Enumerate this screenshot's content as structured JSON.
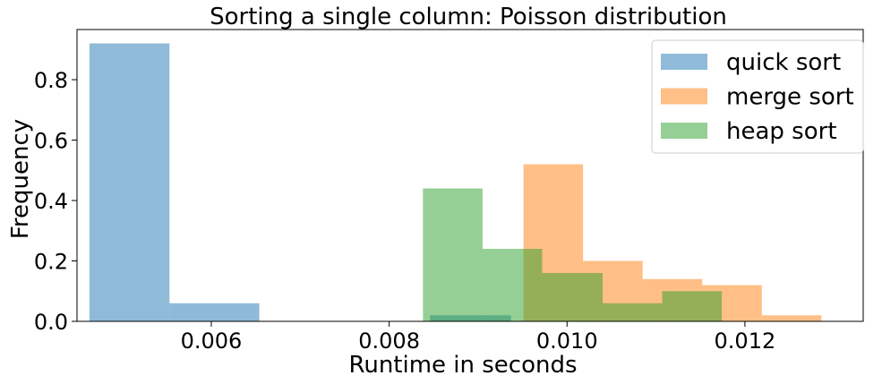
{
  "chart_data": {
    "type": "bar",
    "title": "Sorting a single column: Poisson distribution",
    "xlabel": "Runtime in seconds",
    "ylabel": "Frequency",
    "xlim": [
      0.00449,
      0.01333
    ],
    "ylim": [
      0,
      0.966
    ],
    "xticks": [
      {
        "value": 0.006,
        "label": "0.006"
      },
      {
        "value": 0.008,
        "label": "0.008"
      },
      {
        "value": 0.01,
        "label": "0.010"
      },
      {
        "value": 0.012,
        "label": "0.012"
      }
    ],
    "yticks": [
      {
        "value": 0.0,
        "label": "0.0"
      },
      {
        "value": 0.2,
        "label": "0.2"
      },
      {
        "value": 0.4,
        "label": "0.4"
      },
      {
        "value": 0.6,
        "label": "0.6"
      },
      {
        "value": 0.8,
        "label": "0.8"
      }
    ],
    "grid": false,
    "legend_position": "top-right",
    "series": [
      {
        "name": "quick sort",
        "color": "#1f77b4",
        "bins": [
          {
            "x0": 0.00463,
            "x1": 0.00553,
            "value": 0.92
          },
          {
            "x0": 0.00553,
            "x1": 0.00654,
            "value": 0.06
          },
          {
            "x0": 0.00846,
            "x1": 0.00937,
            "value": 0.02
          }
        ]
      },
      {
        "name": "merge sort",
        "color": "#ff7f0e",
        "bins": [
          {
            "x0": 0.00951,
            "x1": 0.01018,
            "value": 0.52
          },
          {
            "x0": 0.01018,
            "x1": 0.01085,
            "value": 0.2
          },
          {
            "x0": 0.01085,
            "x1": 0.01152,
            "value": 0.14
          },
          {
            "x0": 0.01152,
            "x1": 0.01219,
            "value": 0.12
          },
          {
            "x0": 0.01219,
            "x1": 0.01286,
            "value": 0.02
          }
        ]
      },
      {
        "name": "heap sort",
        "color": "#2ca02c",
        "bins": [
          {
            "x0": 0.00838,
            "x1": 0.00905,
            "value": 0.44
          },
          {
            "x0": 0.00905,
            "x1": 0.00972,
            "value": 0.24
          },
          {
            "x0": 0.00972,
            "x1": 0.0104,
            "value": 0.16
          },
          {
            "x0": 0.0104,
            "x1": 0.01107,
            "value": 0.06
          },
          {
            "x0": 0.01107,
            "x1": 0.01174,
            "value": 0.1
          }
        ]
      }
    ]
  }
}
